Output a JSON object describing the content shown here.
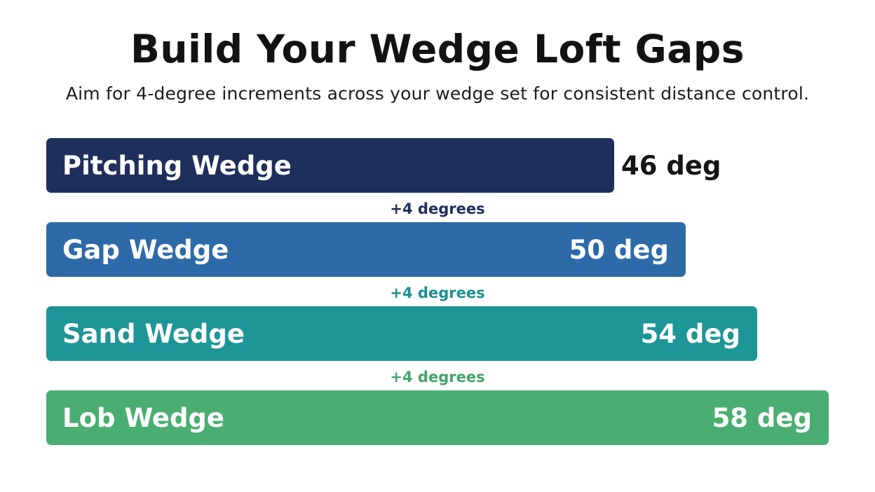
{
  "title": "Build Your Wedge Loft Gaps",
  "subtitle": "Aim for 4-degree increments across your wedge set for consistent distance control.",
  "colors": {
    "pitching": "#1f2f5c",
    "gap": "#2d6aa8",
    "sand": "#1e9596",
    "lob": "#4aae72",
    "gap_label_1": "#1f2f5c",
    "gap_label_2": "#1e8f8f",
    "gap_label_3": "#44a36a"
  },
  "chart_data": {
    "type": "bar",
    "orientation": "horizontal",
    "unit": "deg",
    "categories": [
      "Pitching Wedge",
      "Gap Wedge",
      "Sand Wedge",
      "Lob Wedge"
    ],
    "values": [
      46,
      50,
      54,
      58
    ],
    "value_labels": [
      "46 deg",
      "50 deg",
      "54 deg",
      "58 deg"
    ],
    "gap_labels": [
      "+4 degrees",
      "+4 degrees",
      "+4 degrees"
    ],
    "xlim": [
      0,
      58
    ]
  }
}
